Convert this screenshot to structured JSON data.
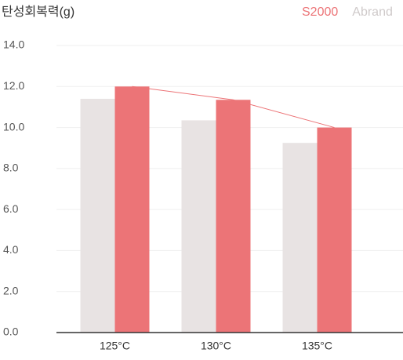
{
  "chart_data": {
    "type": "bar",
    "title": "탄성회복력(g)",
    "categories": [
      "125°C",
      "130°C",
      "135°C"
    ],
    "series": [
      {
        "name": "S2000",
        "color": "#ec7477",
        "values": [
          12.0,
          11.35,
          10.0
        ]
      },
      {
        "name": "Abrand",
        "color": "#e8e3e3",
        "values": [
          11.4,
          10.35,
          9.25
        ]
      }
    ],
    "ylim": [
      0,
      14
    ],
    "yticks": [
      {
        "value": 0,
        "label": "0.0"
      },
      {
        "value": 2,
        "label": "2.0"
      },
      {
        "value": 4,
        "label": "4.0"
      },
      {
        "value": 6,
        "label": "6.0"
      },
      {
        "value": 8,
        "label": "8.0"
      },
      {
        "value": 10,
        "label": "10.0"
      },
      {
        "value": 12,
        "label": "12.0"
      },
      {
        "value": 14,
        "label": "14.0"
      }
    ],
    "grid": true
  }
}
